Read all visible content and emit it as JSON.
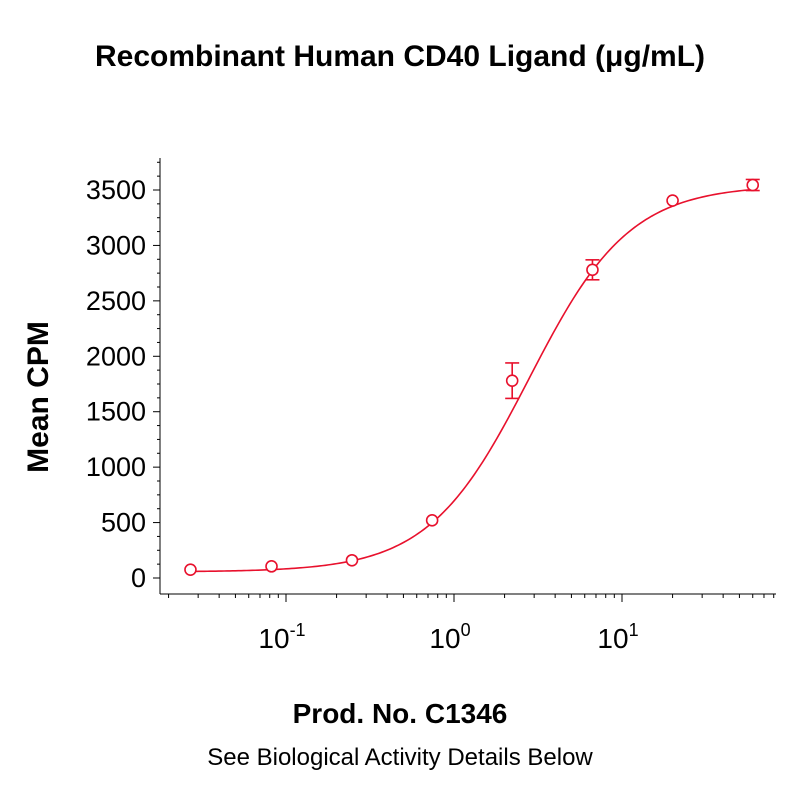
{
  "chart_data": {
    "type": "scatter",
    "title": "Recombinant Human CD40 Ligand (μg/mL)",
    "ylabel": "Mean CPM",
    "xlabel": "",
    "x_scale": "log",
    "xlim": [
      0.02,
      80
    ],
    "ylim": [
      -100,
      3800
    ],
    "yticks": [
      0,
      500,
      1000,
      1500,
      2000,
      2500,
      3000,
      3500
    ],
    "xticks": [
      {
        "base": "10",
        "exp": "-1",
        "value": 0.1
      },
      {
        "base": "10",
        "exp": "0",
        "value": 1
      },
      {
        "base": "10",
        "exp": "1",
        "value": 10
      }
    ],
    "color": "#e8112d",
    "points": [
      {
        "x": 0.027,
        "y": 75,
        "err": 0
      },
      {
        "x": 0.082,
        "y": 105,
        "err": 0
      },
      {
        "x": 0.247,
        "y": 160,
        "err": 0
      },
      {
        "x": 0.741,
        "y": 520,
        "err": 0
      },
      {
        "x": 2.22,
        "y": 1780,
        "err": 160
      },
      {
        "x": 6.67,
        "y": 2780,
        "err": 90
      },
      {
        "x": 20,
        "y": 3405,
        "err": 0
      },
      {
        "x": 60,
        "y": 3545,
        "err": 50
      }
    ],
    "fit": {
      "bottom": 55,
      "top": 3545,
      "ec50": 2.8,
      "hill": 1.45
    }
  },
  "footer": {
    "product": "Prod. No. C1346",
    "note": "See Biological Activity Details Below"
  }
}
